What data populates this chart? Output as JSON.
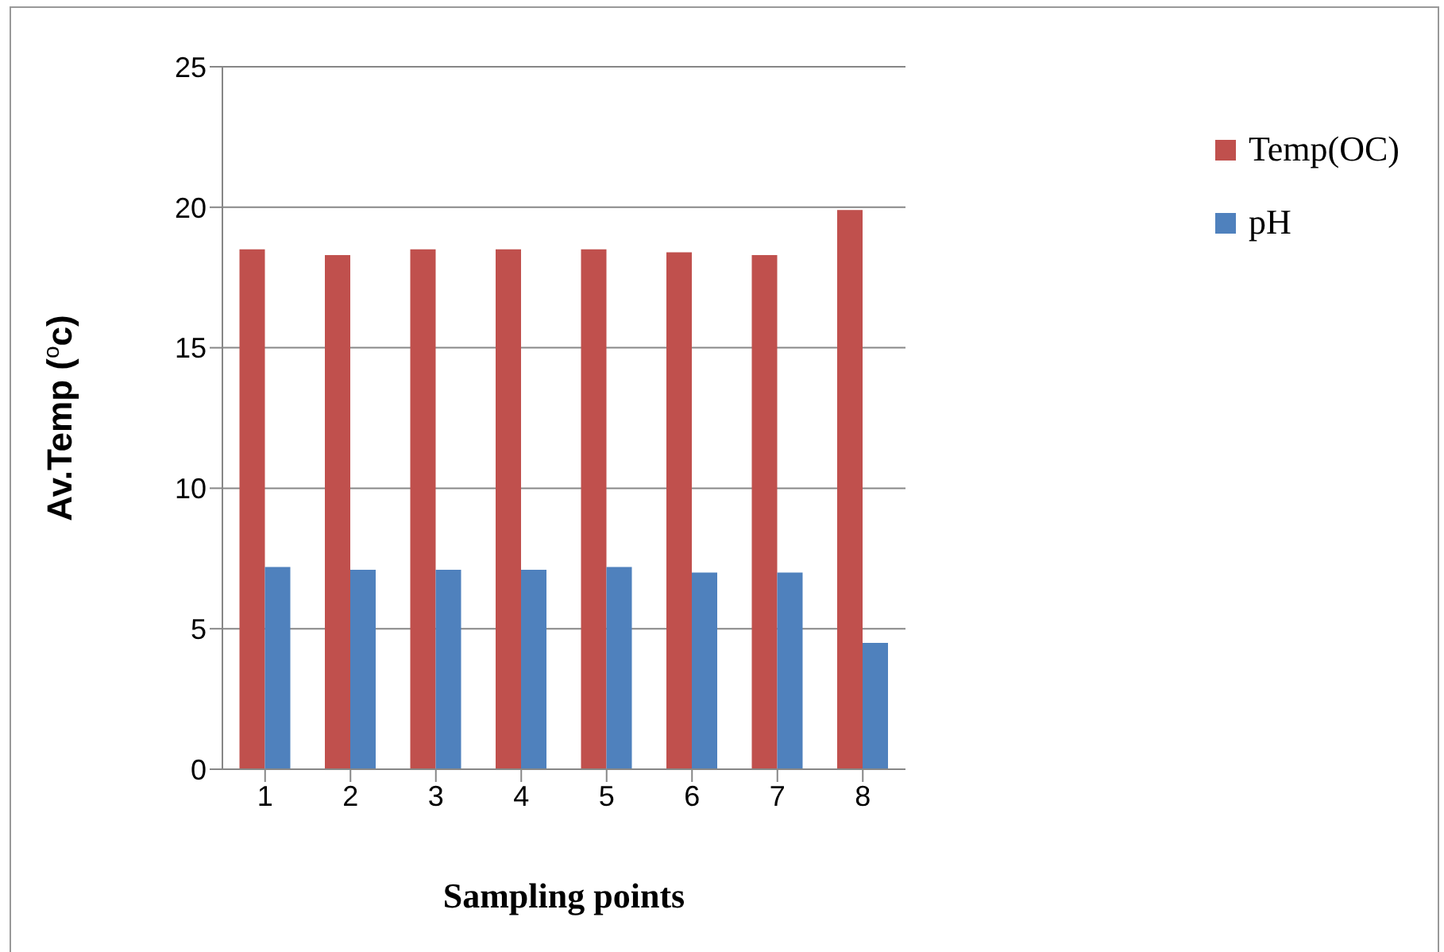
{
  "chart_data": {
    "type": "bar",
    "xlabel": "Sampling points",
    "ylabel": "Av.Temp ($^{o}$c)",
    "categories": [
      "1",
      "2",
      "3",
      "4",
      "5",
      "6",
      "7",
      "8"
    ],
    "series": [
      {
        "name": "Temp(OC)",
        "color": "#c0504d",
        "values": [
          18.5,
          18.3,
          18.5,
          18.5,
          18.5,
          18.4,
          18.3,
          19.9
        ]
      },
      {
        "name": "pH",
        "color": "#4f81bd",
        "values": [
          7.2,
          7.1,
          7.1,
          7.1,
          7.2,
          7.0,
          7.0,
          4.5
        ]
      }
    ],
    "ylim": [
      0,
      25
    ],
    "yticks": [
      0,
      5,
      10,
      15,
      20,
      25
    ],
    "grid": "y",
    "legend": "right"
  }
}
